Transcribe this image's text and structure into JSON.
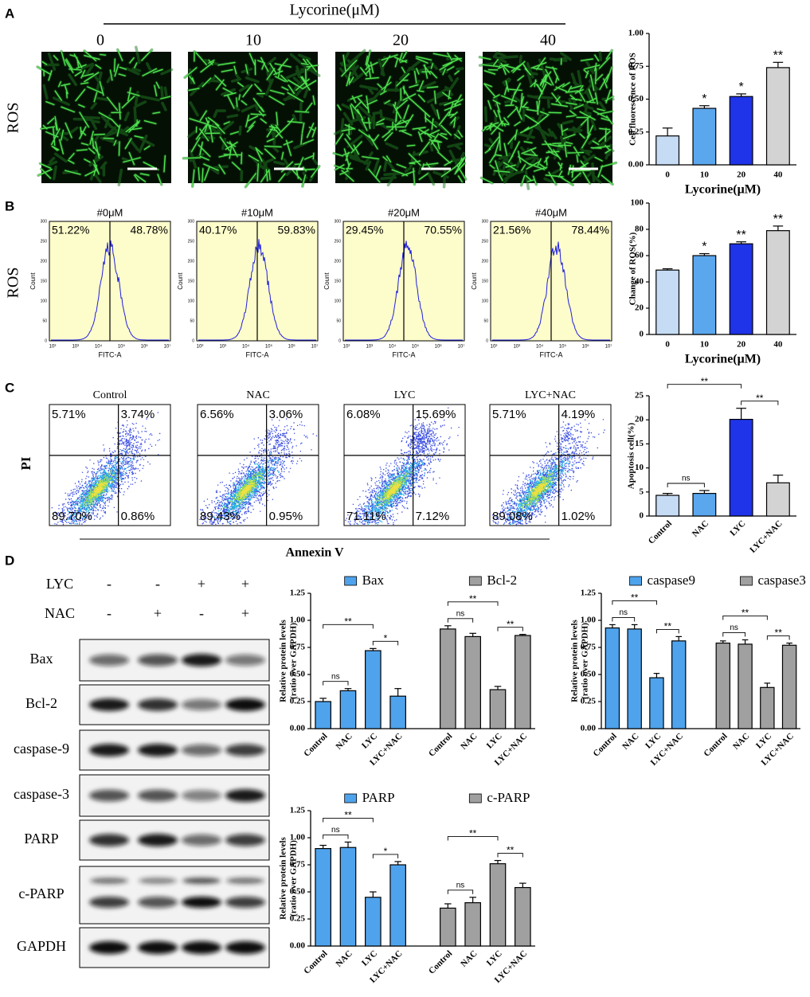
{
  "panel_labels": [
    "A",
    "B",
    "C",
    "D"
  ],
  "panel_a": {
    "treatment": "Lycorine(μM)",
    "doses": [
      "0",
      "10",
      "20",
      "40"
    ],
    "stain": "ROS"
  },
  "panel_b": {
    "stain": "ROS",
    "plots": [
      {
        "title": "#0μM",
        "left": "51.22%",
        "right": "48.78%"
      },
      {
        "title": "#10μM",
        "left": "40.17%",
        "right": "59.83%"
      },
      {
        "title": "#20μM",
        "left": "29.45%",
        "right": "70.55%"
      },
      {
        "title": "#40μM",
        "left": "21.56%",
        "right": "78.44%"
      }
    ],
    "y_label": "Count",
    "x_label": "FITC-A",
    "y_ticks": [
      "0",
      "50",
      "100",
      "150",
      "200",
      "250",
      "300"
    ],
    "x_ticks": [
      "10²",
      "10³",
      "10⁴",
      "10⁵",
      "10⁶",
      "10⁷"
    ]
  },
  "panel_c": {
    "y_label": "PI",
    "x_label": "Annexin V",
    "plots": [
      {
        "title": "Control",
        "quadrants": [
          "5.71%",
          "3.74%",
          "89.70%",
          "0.86%"
        ]
      },
      {
        "title": "NAC",
        "quadrants": [
          "6.56%",
          "3.06%",
          "89.43%",
          "0.95%"
        ]
      },
      {
        "title": "LYC",
        "quadrants": [
          "6.08%",
          "15.69%",
          "71.11%",
          "7.12%"
        ]
      },
      {
        "title": "LYC+NAC",
        "quadrants": [
          "5.71%",
          "4.19%",
          "89.08%",
          "1.02%"
        ]
      }
    ]
  },
  "panel_d": {
    "rows": [
      {
        "label": "LYC",
        "signs": [
          "-",
          "-",
          "+",
          "+"
        ]
      },
      {
        "label": "NAC",
        "signs": [
          "-",
          "+",
          "-",
          "+"
        ]
      }
    ],
    "blots": [
      "Bax",
      "Bcl-2",
      "caspase-9",
      "caspase-3",
      "PARP",
      "c-PARP",
      "GAPDH"
    ]
  },
  "chart_data": [
    {
      "type": "bar",
      "y_label": "Cell fluorescence of ROS",
      "x_label": "Lycorine(μM)",
      "categories": [
        "0",
        "10",
        "20",
        "40"
      ],
      "values": [
        0.22,
        0.43,
        0.52,
        0.74
      ],
      "errors": [
        0.06,
        0.02,
        0.02,
        0.04
      ],
      "colors": [
        "#c6dcf5",
        "#5ba7ee",
        "#1f33e8",
        "#d3d3d3"
      ],
      "annotations": [
        null,
        "*",
        "*",
        "**"
      ],
      "ylim": [
        0,
        1
      ],
      "yticks": [
        {
          "value": 0,
          "label": "0.00"
        },
        0.25,
        {
          "value": 0.5,
          "label": "0.50"
        },
        0.75,
        {
          "value": 1,
          "label": "1.00"
        }
      ]
    },
    {
      "type": "bar",
      "y_label": "Change of ROS(%)",
      "x_label": "Lycorine(μM)",
      "categories": [
        "0",
        "10",
        "20",
        "40"
      ],
      "values": [
        49,
        60,
        69,
        79
      ],
      "errors": [
        1,
        1.5,
        1.5,
        3.5
      ],
      "colors": [
        "#c6dcf5",
        "#5ba7ee",
        "#1f33e8",
        "#d3d3d3"
      ],
      "annotations": [
        null,
        "*",
        "**",
        "**"
      ],
      "ylim": [
        0,
        100
      ],
      "yticks": [
        0,
        20,
        40,
        60,
        80,
        100
      ]
    },
    {
      "type": "bar",
      "y_label": "Apoptosis cell(%)",
      "categories": [
        "Control",
        "NAC",
        "LYC",
        "LYC+NAC"
      ],
      "values": [
        4.3,
        4.7,
        20.1,
        6.9
      ],
      "errors": [
        0.4,
        0.6,
        2.3,
        1.6
      ],
      "colors": [
        "#c6dcf5",
        "#5ba7ee",
        "#1f33e8",
        "#d3d3d3"
      ],
      "brackets": [
        {
          "label": "ns",
          "between": [
            "Control",
            "NAC"
          ]
        },
        {
          "label": "**",
          "between": [
            "LYC",
            "LYC+NAC"
          ]
        },
        {
          "label": "**",
          "between": [
            "Control",
            "LYC"
          ]
        }
      ],
      "ylim": [
        0,
        25
      ],
      "yticks": [
        0,
        5,
        10,
        15,
        20,
        25
      ]
    },
    {
      "type": "bar",
      "y_label": [
        "Relative protein levels",
        "(ratio over GAPDH)"
      ],
      "categories": [
        "Control",
        "NAC",
        "LYC",
        "LYC+NAC"
      ],
      "series": [
        {
          "name": "Bax",
          "color": "#4fa3ec",
          "values": [
            0.25,
            0.35,
            0.72,
            0.3
          ],
          "errors": [
            0.03,
            0.02,
            0.02,
            0.07
          ],
          "brackets": [
            {
              "label": "ns",
              "between": [
                "Control",
                "NAC"
              ]
            },
            {
              "label": "*",
              "between": [
                "LYC",
                "LYC+NAC"
              ]
            },
            {
              "label": "**",
              "between": [
                "Control",
                "LYC"
              ]
            }
          ]
        },
        {
          "name": "Bcl-2",
          "color": "#a0a0a0",
          "values": [
            0.92,
            0.85,
            0.36,
            0.86
          ],
          "errors": [
            0.03,
            0.03,
            0.03,
            0.01
          ],
          "brackets": [
            {
              "label": "ns",
              "between": [
                "Control",
                "NAC"
              ]
            },
            {
              "label": "**",
              "between": [
                "LYC",
                "LYC+NAC"
              ]
            },
            {
              "label": "**",
              "between": [
                "Control",
                "LYC"
              ]
            }
          ]
        }
      ],
      "ylim": [
        0,
        1.25
      ],
      "yticks": [
        {
          "value": 0,
          "label": "0.00"
        },
        0.25,
        {
          "value": 0.5,
          "label": "0.50"
        },
        0.75,
        {
          "value": 1,
          "label": "1.00"
        },
        1.25
      ]
    },
    {
      "type": "bar",
      "y_label": [
        "Relative protein levels",
        "(ratio over GAPDH)"
      ],
      "categories": [
        "Control",
        "NAC",
        "LYC",
        "LYC+NAC"
      ],
      "series": [
        {
          "name": "caspase9",
          "color": "#4fa3ec",
          "values": [
            0.93,
            0.92,
            0.47,
            0.81
          ],
          "errors": [
            0.03,
            0.04,
            0.04,
            0.04
          ],
          "brackets": [
            {
              "label": "ns",
              "between": [
                "Control",
                "NAC"
              ]
            },
            {
              "label": "**",
              "between": [
                "LYC",
                "LYC+NAC"
              ]
            },
            {
              "label": "**",
              "between": [
                "Control",
                "LYC"
              ]
            }
          ]
        },
        {
          "name": "caspase3",
          "color": "#a0a0a0",
          "values": [
            0.79,
            0.78,
            0.38,
            0.77
          ],
          "errors": [
            0.02,
            0.04,
            0.04,
            0.02
          ],
          "brackets": [
            {
              "label": "ns",
              "between": [
                "Control",
                "NAC"
              ]
            },
            {
              "label": "**",
              "between": [
                "LYC",
                "LYC+NAC"
              ]
            },
            {
              "label": "**",
              "between": [
                "Control",
                "LYC"
              ]
            }
          ]
        }
      ],
      "ylim": [
        0,
        1.25
      ],
      "yticks": [
        {
          "value": 0,
          "label": "0.00"
        },
        0.25,
        {
          "value": 0.5,
          "label": "0.50"
        },
        0.75,
        {
          "value": 1,
          "label": "1.00"
        },
        1.25
      ]
    },
    {
      "type": "bar",
      "y_label": [
        "Relative protein levels",
        "(ratio over GAPDH)"
      ],
      "categories": [
        "Control",
        "NAC",
        "LYC",
        "LYC+NAC"
      ],
      "series": [
        {
          "name": "PARP",
          "color": "#4fa3ec",
          "values": [
            0.9,
            0.91,
            0.45,
            0.75
          ],
          "errors": [
            0.03,
            0.05,
            0.05,
            0.03
          ],
          "brackets": [
            {
              "label": "ns",
              "between": [
                "Control",
                "NAC"
              ]
            },
            {
              "label": "*",
              "between": [
                "LYC",
                "LYC+NAC"
              ]
            },
            {
              "label": "**",
              "between": [
                "Control",
                "LYC"
              ]
            }
          ]
        },
        {
          "name": "c-PARP",
          "color": "#a0a0a0",
          "values": [
            0.35,
            0.4,
            0.76,
            0.54
          ],
          "errors": [
            0.04,
            0.05,
            0.03,
            0.04
          ],
          "brackets": [
            {
              "label": "ns",
              "between": [
                "Control",
                "NAC"
              ]
            },
            {
              "label": "**",
              "between": [
                "LYC",
                "LYC+NAC"
              ]
            },
            {
              "label": "**",
              "between": [
                "Control",
                "LYC"
              ]
            }
          ]
        }
      ],
      "ylim": [
        0,
        1.25
      ],
      "yticks": [
        {
          "value": 0,
          "label": "0.00"
        },
        0.25,
        {
          "value": 0.5,
          "label": "0.50"
        },
        0.75,
        {
          "value": 1,
          "label": "1.00"
        },
        1.25
      ]
    }
  ]
}
